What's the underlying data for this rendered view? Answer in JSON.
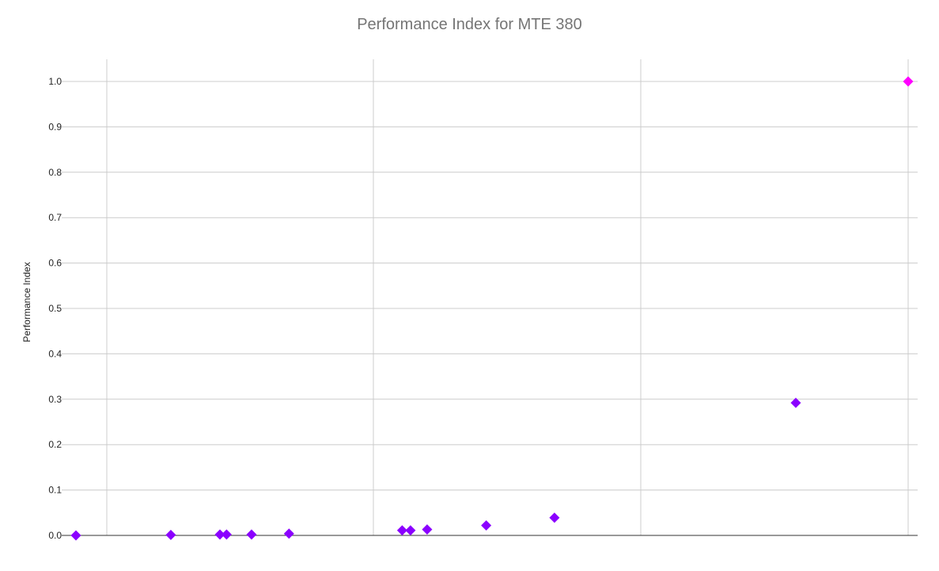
{
  "chart_data": {
    "type": "scatter",
    "title": "Performance Index for MTE 380",
    "xlabel": "",
    "ylabel": "Performance Index",
    "ylim": [
      0,
      1.05
    ],
    "yticks": [
      "0.0",
      "0.1",
      "0.2",
      "0.3",
      "0.4",
      "0.5",
      "0.6",
      "0.7",
      "0.8",
      "0.9",
      "1.0"
    ],
    "grid": true,
    "legend": "none",
    "series": [
      {
        "color": "#8b00ff",
        "points": [
          {
            "x": 0.0,
            "y": 0.0
          },
          {
            "x": 0.114,
            "y": 0.001
          },
          {
            "x": 0.173,
            "y": 0.002
          },
          {
            "x": 0.181,
            "y": 0.002
          },
          {
            "x": 0.211,
            "y": 0.002
          },
          {
            "x": 0.256,
            "y": 0.004
          },
          {
            "x": 0.392,
            "y": 0.011
          },
          {
            "x": 0.402,
            "y": 0.011
          },
          {
            "x": 0.422,
            "y": 0.013
          },
          {
            "x": 0.493,
            "y": 0.022
          },
          {
            "x": 0.575,
            "y": 0.039
          },
          {
            "x": 0.865,
            "y": 0.292
          }
        ]
      },
      {
        "color": "#ff00ff",
        "points": [
          {
            "x": 1.0,
            "y": 1.0
          }
        ]
      }
    ]
  }
}
